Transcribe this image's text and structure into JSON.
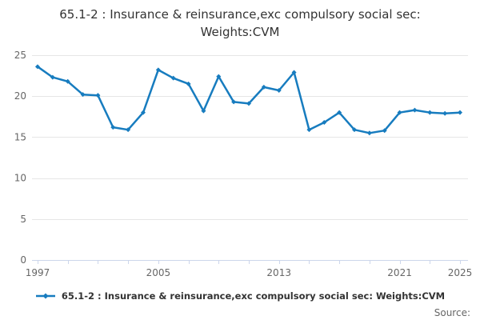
{
  "chart_data": {
    "type": "line",
    "title": "65.1-2 : Insurance & reinsurance,exc compulsory social sec:\nWeights:CVM",
    "legend_label": "65.1-2 : Insurance & reinsurance,exc compulsory social sec: Weights:CVM",
    "source_label": "Source:",
    "xlabel": "",
    "ylabel": "",
    "x": [
      1997,
      1998,
      1999,
      2000,
      2001,
      2002,
      2003,
      2004,
      2005,
      2006,
      2007,
      2008,
      2009,
      2010,
      2011,
      2012,
      2013,
      2014,
      2015,
      2016,
      2017,
      2018,
      2019,
      2020,
      2021,
      2022,
      2023,
      2024,
      2025
    ],
    "series": [
      {
        "name": "65.1-2 : Insurance & reinsurance,exc compulsory social sec: Weights:CVM",
        "color": "#177cbf",
        "values": [
          23.6,
          22.3,
          21.8,
          20.2,
          20.1,
          16.2,
          15.9,
          18.0,
          23.2,
          22.2,
          21.5,
          18.2,
          22.4,
          19.3,
          19.1,
          21.1,
          20.7,
          22.9,
          15.9,
          16.8,
          18.0,
          15.9,
          15.5,
          15.8,
          18.0,
          18.3,
          18.0,
          17.9,
          18.0
        ]
      }
    ],
    "ylim": [
      0,
      25
    ],
    "xlim": [
      1996.63,
      2025.53
    ],
    "y_ticks": [
      0,
      5,
      10,
      15,
      20,
      25
    ],
    "x_tick_years": [
      1997,
      2005,
      2013,
      2021,
      2025
    ],
    "x_tick_labels": [
      "1997",
      "2005",
      "2013",
      "2021",
      "2025"
    ],
    "x_minor_tick_step": 2,
    "grid": "horizontal",
    "legend_position": "bottom-center",
    "colors": {
      "line": "#177cbf",
      "grid": "#e6e6e6",
      "axis": "#ccd6eb",
      "tick_label": "#666666",
      "title": "#333333",
      "legend_text": "#333333",
      "source_text": "#666666"
    }
  }
}
